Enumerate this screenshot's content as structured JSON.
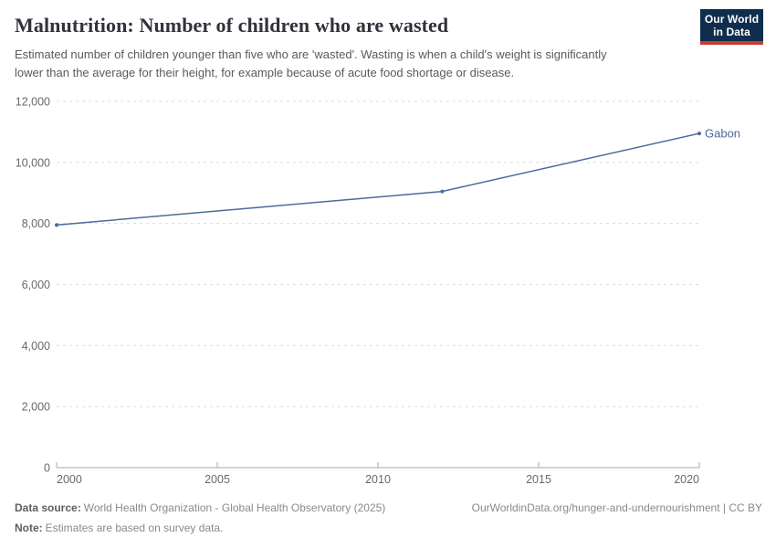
{
  "header": {
    "title": "Malnutrition: Number of children who are wasted",
    "subtitle": "Estimated number of children younger than five who are 'wasted'. Wasting is when a child's weight is significantly lower than the average for their height, for example because of acute food shortage or disease."
  },
  "logo": {
    "line1": "Our World",
    "line2": "in Data",
    "bg_color": "#102d4e",
    "accent_color": "#c53f33"
  },
  "chart_data": {
    "type": "line",
    "title": "Malnutrition: Number of children who are wasted",
    "x": [
      2000,
      2012,
      2020
    ],
    "series": [
      {
        "name": "Gabon",
        "color": "#4c6a9c",
        "values": [
          7950,
          9050,
          10950
        ]
      }
    ],
    "xlim": [
      2000,
      2020
    ],
    "ylim": [
      0,
      12000
    ],
    "x_ticks": [
      2000,
      2005,
      2010,
      2015,
      2020
    ],
    "y_ticks": [
      0,
      2000,
      4000,
      6000,
      8000,
      10000,
      12000
    ],
    "grid": "horizontal-dashed",
    "legend_position": "end-of-line-label",
    "gridline_color": "#dcdcdc",
    "axis_color": "#a9a9a9"
  },
  "footer": {
    "source_label": "Data source:",
    "source_text": "World Health Organization - Global Health Observatory (2025)",
    "note_label": "Note:",
    "note_text": "Estimates are based on survey data.",
    "link_text": "OurWorldinData.org/hunger-and-undernourishment | CC BY"
  }
}
